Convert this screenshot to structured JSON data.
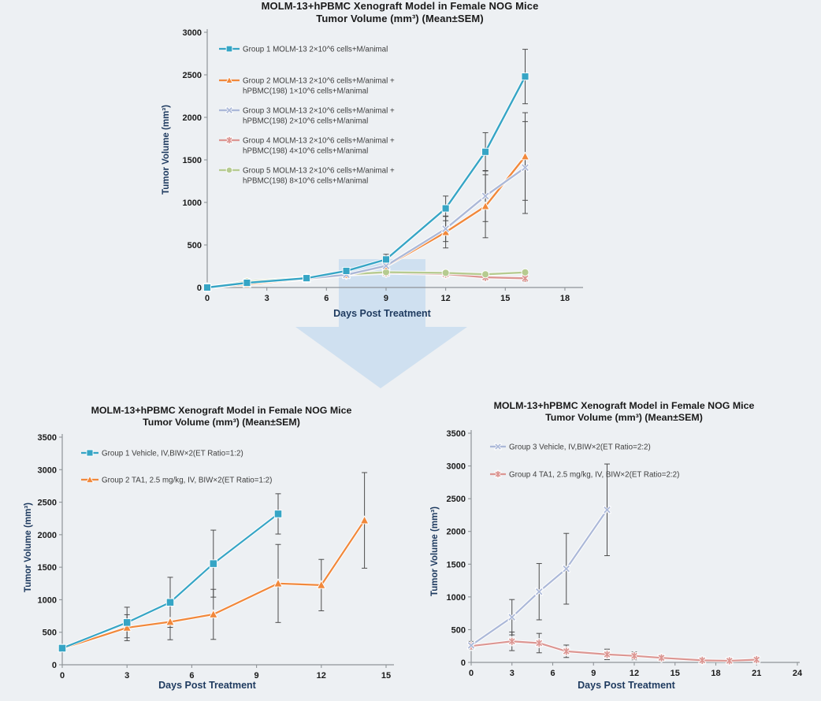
{
  "page": {
    "background": "#edf0f3"
  },
  "transition_arrow": {
    "shape": "down-arrow",
    "color": "#bdd7ee",
    "opacity": 0.62
  },
  "chart_data": [
    {
      "id": "dose-titration-model",
      "type": "line",
      "title_line1": "MOLM-13+hPBMC Xenograft Model in Female NOG Mice",
      "title_line2": "Tumor Volume (mm³) (Mean±SEM)",
      "xlabel": "Days Post Treatment",
      "ylabel": "Tumor Volume (mm³)",
      "xlim": [
        0,
        18
      ],
      "xticks": [
        0,
        3,
        6,
        9,
        12,
        15,
        18
      ],
      "ylim": [
        0,
        3000
      ],
      "yticks": [
        0,
        500,
        1000,
        1500,
        2000,
        2500,
        3000
      ],
      "grid": false,
      "legend_position": "top-left",
      "error_bars": "±SEM",
      "series": [
        {
          "name_lines": [
            "Group 1 MOLM-13  2×10^6 cells+M/animal"
          ],
          "color": "#36a5c5",
          "marker": "square",
          "x": [
            0,
            2,
            5,
            7,
            9,
            12,
            14,
            16
          ],
          "y": [
            0,
            55,
            110,
            195,
            330,
            930,
            1595,
            2480
          ],
          "sem": [
            5,
            12,
            18,
            28,
            60,
            145,
            225,
            320
          ]
        },
        {
          "name_lines": [
            "Group 2 MOLM-13  2×10^6 cells+M/animal +",
            "hPBMC(198) 1×10^6 cells+M/animal"
          ],
          "color": "#f1883b",
          "marker": "triangle",
          "x": [
            0,
            2,
            5,
            7,
            9,
            12,
            14,
            16
          ],
          "y": [
            0,
            40,
            100,
            148,
            250,
            650,
            955,
            1540
          ],
          "sem": [
            5,
            10,
            15,
            20,
            40,
            185,
            370,
            515
          ]
        },
        {
          "name_lines": [
            "Group 3 MOLM-13  2×10^6 cells+M/animal +",
            "hPBMC(198) 2×10^6 cells+M/animal"
          ],
          "color": "#abb8d8",
          "marker": "x",
          "x": [
            0,
            2,
            5,
            7,
            9,
            12,
            14,
            16
          ],
          "y": [
            0,
            55,
            105,
            150,
            255,
            690,
            1075,
            1410
          ],
          "sem": [
            5,
            10,
            15,
            20,
            40,
            150,
            300,
            540
          ]
        },
        {
          "name_lines": [
            "Group 4 MOLM-13  2×10^6 cells+M/animal +",
            "hPBMC(198) 4×10^6 cells+M/animal"
          ],
          "color": "#dc9692",
          "marker": "star",
          "x": [
            0,
            2,
            5,
            7,
            9,
            12,
            14,
            16
          ],
          "y": [
            0,
            60,
            110,
            150,
            172,
            158,
            120,
            108
          ],
          "sem": [
            5,
            10,
            12,
            15,
            22,
            25,
            30,
            38
          ]
        },
        {
          "name_lines": [
            "Group 5 MOLM-13  2×10^6 cells+M/animal +",
            "hPBMC(198) 8×10^6 cells+M/animal"
          ],
          "color": "#b6cb90",
          "marker": "circle",
          "x": [
            0,
            2,
            5,
            7,
            9,
            12,
            14,
            16
          ],
          "y": [
            0,
            70,
            115,
            155,
            180,
            172,
            155,
            178
          ],
          "sem": [
            5,
            8,
            10,
            12,
            18,
            20,
            22,
            28
          ]
        }
      ]
    },
    {
      "id": "efficacy-et-ratio-1-2",
      "type": "line",
      "title_line1": "MOLM-13+hPBMC Xenograft Model in Female NOG Mice",
      "title_line2": "Tumor Volume (mm³) (Mean±SEM)",
      "xlabel": "Days Post Treatment",
      "ylabel": "Tumor Volume (mm³)",
      "xlim": [
        0,
        15
      ],
      "xticks": [
        0,
        3,
        6,
        9,
        12,
        15
      ],
      "ylim": [
        0,
        3500
      ],
      "yticks": [
        0,
        500,
        1000,
        1500,
        2000,
        2500,
        3000,
        3500
      ],
      "grid": false,
      "legend_position": "top-left",
      "error_bars": "±SEM",
      "series": [
        {
          "name_lines": [
            "Group 1 Vehicle, IV,BIW×2(ET Ratio=1:2)"
          ],
          "color": "#36a5c5",
          "marker": "square",
          "x": [
            0,
            3,
            5,
            7,
            10
          ],
          "y": [
            255,
            650,
            960,
            1555,
            2320
          ],
          "sem": [
            35,
            235,
            385,
            515,
            310
          ]
        },
        {
          "name_lines": [
            "Group 2 TA1, 2.5 mg/kg, IV, BIW×2(ET Ratio=1:2)"
          ],
          "color": "#f1883b",
          "marker": "triangle",
          "x": [
            0,
            3,
            5,
            7,
            10,
            12,
            14
          ],
          "y": [
            250,
            570,
            660,
            775,
            1250,
            1225,
            2220
          ],
          "sem": [
            35,
            200,
            275,
            385,
            600,
            395,
            735
          ]
        }
      ]
    },
    {
      "id": "efficacy-et-ratio-2-2",
      "type": "line",
      "title_line1": "MOLM-13+hPBMC Xenograft Model in Female NOG Mice",
      "title_line2": "Tumor Volume (mm³) (Mean±SEM)",
      "xlabel": "Days Post Treatment",
      "ylabel": "Tumor Volume (mm³)",
      "xlim": [
        0,
        24
      ],
      "xticks": [
        0,
        3,
        6,
        9,
        12,
        15,
        18,
        21,
        24
      ],
      "ylim": [
        0,
        3500
      ],
      "yticks": [
        0,
        500,
        1000,
        1500,
        2000,
        2500,
        3000,
        3500
      ],
      "grid": false,
      "legend_position": "top-left",
      "error_bars": "±SEM",
      "series": [
        {
          "name_lines": [
            "Group 3 Vehicle, IV,BIW×2(ET Ratio=2:2)"
          ],
          "color": "#abb8d8",
          "marker": "x",
          "x": [
            0,
            3,
            5,
            7,
            10
          ],
          "y": [
            260,
            690,
            1080,
            1430,
            2330
          ],
          "sem": [
            60,
            270,
            430,
            540,
            700
          ]
        },
        {
          "name_lines": [
            "Group 4 TA1, 2.5 mg/kg, IV, BIW×2(ET Ratio=2:2)"
          ],
          "color": "#dc9692",
          "marker": "star",
          "x": [
            0,
            3,
            5,
            7,
            10,
            12,
            14,
            17,
            19,
            21
          ],
          "y": [
            250,
            322,
            295,
            170,
            122,
            100,
            70,
            32,
            25,
            42
          ],
          "sem": [
            50,
            142,
            148,
            95,
            80,
            60,
            32,
            30,
            18,
            18
          ]
        }
      ]
    }
  ]
}
